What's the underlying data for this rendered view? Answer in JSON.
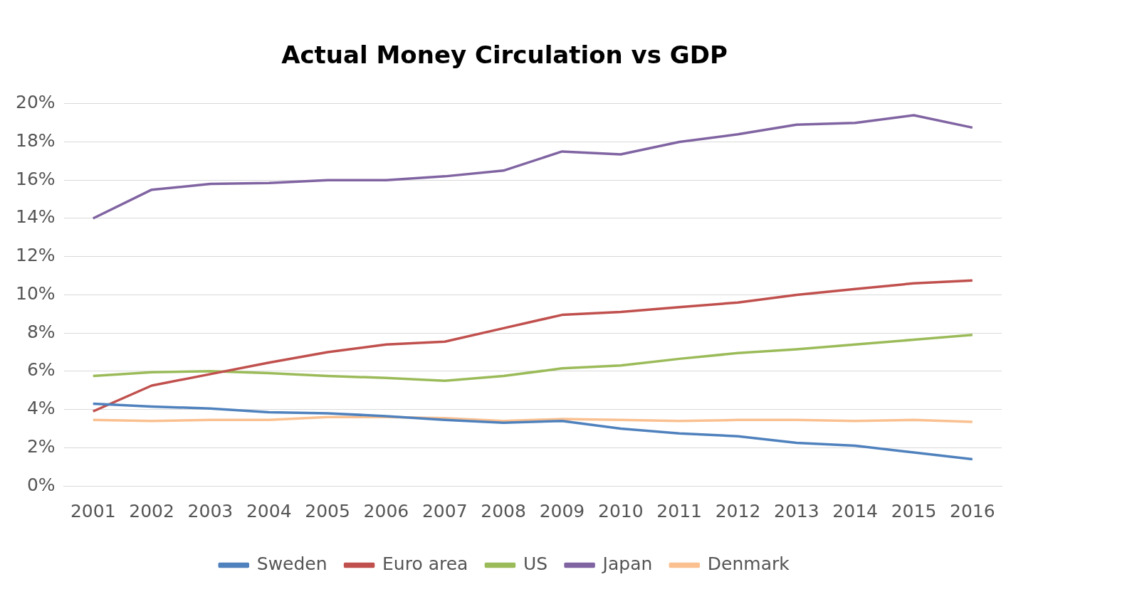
{
  "chart_data": {
    "type": "line",
    "title": "Actual Money Circulation vs GDP",
    "categories": [
      "2001",
      "2002",
      "2003",
      "2004",
      "2005",
      "2006",
      "2007",
      "2008",
      "2009",
      "2010",
      "2011",
      "2012",
      "2013",
      "2014",
      "2015",
      "2016"
    ],
    "series": [
      {
        "name": "Sweden",
        "color": "#4f81bd",
        "values": [
          4.3,
          4.15,
          4.05,
          3.85,
          3.8,
          3.65,
          3.45,
          3.3,
          3.4,
          3.0,
          2.75,
          2.6,
          2.25,
          2.1,
          1.75,
          1.4
        ]
      },
      {
        "name": "Euro area",
        "color": "#c0504d",
        "values": [
          3.9,
          5.25,
          5.85,
          6.45,
          7.0,
          7.4,
          7.55,
          8.25,
          8.95,
          9.1,
          9.35,
          9.6,
          10.0,
          10.3,
          10.6,
          10.75
        ]
      },
      {
        "name": "US",
        "color": "#9bbb59",
        "values": [
          5.75,
          5.95,
          6.0,
          5.9,
          5.75,
          5.65,
          5.5,
          5.75,
          6.15,
          6.3,
          6.65,
          6.95,
          7.15,
          7.4,
          7.65,
          7.9
        ]
      },
      {
        "name": "Japan",
        "color": "#8064a2",
        "values": [
          14.0,
          15.5,
          15.8,
          15.85,
          16.0,
          16.0,
          16.2,
          16.5,
          17.5,
          17.35,
          18.0,
          18.4,
          18.9,
          19.0,
          19.4,
          18.75
        ]
      },
      {
        "name": "Denmark",
        "color": "#fac090",
        "values": [
          3.45,
          3.4,
          3.45,
          3.45,
          3.6,
          3.6,
          3.55,
          3.4,
          3.5,
          3.45,
          3.4,
          3.45,
          3.45,
          3.4,
          3.45,
          3.35
        ]
      }
    ],
    "ylim": [
      0,
      20
    ],
    "yticks": [
      {
        "value": 0,
        "label": "0%"
      },
      {
        "value": 2,
        "label": "2%"
      },
      {
        "value": 4,
        "label": "4%"
      },
      {
        "value": 6,
        "label": "6%"
      },
      {
        "value": 8,
        "label": "8%"
      },
      {
        "value": 10,
        "label": "10%"
      },
      {
        "value": 12,
        "label": "12%"
      },
      {
        "value": 14,
        "label": "14%"
      },
      {
        "value": 16,
        "label": "16%"
      },
      {
        "value": 18,
        "label": "18%"
      },
      {
        "value": 20,
        "label": "20%"
      }
    ],
    "grid": "y",
    "legend": "bottom",
    "marker": "none",
    "line_style": "solid"
  }
}
